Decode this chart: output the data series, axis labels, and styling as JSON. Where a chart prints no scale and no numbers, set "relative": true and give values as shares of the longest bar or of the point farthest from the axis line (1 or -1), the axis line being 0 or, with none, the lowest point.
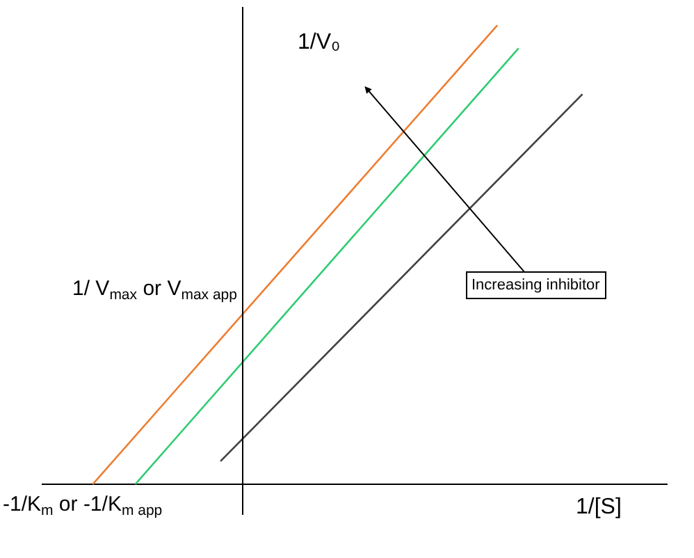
{
  "chart_data": {
    "type": "line",
    "relative": true,
    "xlabel": "1/[S]",
    "ylabel": "1/V₀",
    "marker": "none",
    "line_style": "solid",
    "categories": [
      null,
      null,
      null,
      null,
      null,
      null,
      null,
      null,
      null,
      null,
      null,
      null,
      null,
      null,
      null,
      null,
      null,
      null,
      null,
      null,
      null,
      null,
      null,
      null,
      null,
      null,
      null,
      null,
      null
    ],
    "series": [
      {
        "color": "#ed7d31",
        "values": [
          null,
          0,
          null,
          null,
          null,
          null,
          null,
          null,
          null,
          null,
          null,
          null,
          null,
          null,
          null,
          null,
          null,
          null,
          null,
          null,
          1,
          null,
          null,
          null,
          null,
          null,
          null,
          null,
          null
        ]
      },
      {
        "color": "#2ecc71",
        "values": [
          null,
          null,
          null,
          0,
          null,
          null,
          null,
          null,
          null,
          null,
          null,
          null,
          null,
          null,
          null,
          null,
          null,
          null,
          null,
          null,
          null,
          0.95,
          null,
          null,
          null,
          null,
          null,
          null,
          null
        ]
      },
      {
        "color": "#404040",
        "values": [
          null,
          null,
          null,
          null,
          null,
          null,
          null,
          0.05,
          null,
          null,
          null,
          null,
          null,
          null,
          null,
          null,
          null,
          null,
          null,
          null,
          null,
          null,
          null,
          null,
          0.85,
          null,
          null,
          null,
          null
        ]
      }
    ],
    "annotations": [
      "1/ V$_{max}$ or V$_{max app}$",
      "-1/K$_{m}$ or -1/K$_{m app}$",
      "Increasing inhibitor"
    ]
  }
}
